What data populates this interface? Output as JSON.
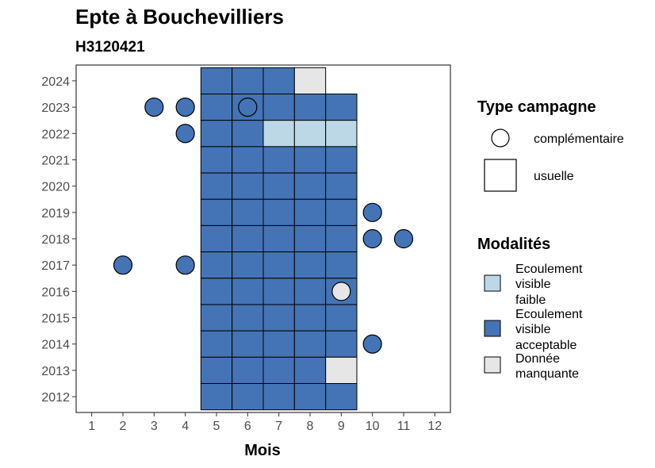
{
  "chart_data": {
    "type": "heatmap",
    "title": "Epte à Bouchevilliers",
    "subtitle": "H3120421",
    "xlabel": "Mois",
    "ylabel": "",
    "x_ticks": [
      1,
      2,
      3,
      4,
      5,
      6,
      7,
      8,
      9,
      10,
      11,
      12
    ],
    "y_ticks": [
      2012,
      2013,
      2014,
      2015,
      2016,
      2017,
      2018,
      2019,
      2020,
      2021,
      2022,
      2023,
      2024
    ],
    "xlim": [
      0.5,
      12.5
    ],
    "ylim": [
      2011.4,
      2024.6
    ],
    "grid": false,
    "colors": {
      "faible": "#bcd8e6",
      "acceptable": "#4474b5",
      "manquante": "#e6e6e6"
    },
    "legend_type": {
      "title": "Type campagne",
      "items": [
        {
          "shape": "circle",
          "label": "complémentaire"
        },
        {
          "shape": "square",
          "label": "usuelle"
        }
      ]
    },
    "legend_modalites": {
      "title": "Modalités",
      "items": [
        {
          "key": "faible",
          "lines": [
            "Ecoulement",
            "visible",
            "faible"
          ]
        },
        {
          "key": "acceptable",
          "lines": [
            "Ecoulement",
            "visible",
            "acceptable"
          ]
        },
        {
          "key": "manquante",
          "lines": [
            "Donnée",
            "manquante"
          ]
        }
      ]
    },
    "usuelle": [
      {
        "year": 2024,
        "months": [
          5,
          6,
          7
        ],
        "modalite": "acceptable"
      },
      {
        "year": 2024,
        "months": [
          8
        ],
        "modalite": "manquante"
      },
      {
        "year": 2023,
        "months": [
          5,
          6,
          7,
          8,
          9
        ],
        "modalite": "acceptable"
      },
      {
        "year": 2022,
        "months": [
          5,
          6
        ],
        "modalite": "acceptable"
      },
      {
        "year": 2022,
        "months": [
          7,
          8,
          9
        ],
        "modalite": "faible"
      },
      {
        "year": 2021,
        "months": [
          5,
          6,
          7,
          8,
          9
        ],
        "modalite": "acceptable"
      },
      {
        "year": 2020,
        "months": [
          5,
          6,
          7,
          8,
          9
        ],
        "modalite": "acceptable"
      },
      {
        "year": 2019,
        "months": [
          5,
          6,
          7,
          8,
          9
        ],
        "modalite": "acceptable"
      },
      {
        "year": 2018,
        "months": [
          5,
          6,
          7,
          8,
          9
        ],
        "modalite": "acceptable"
      },
      {
        "year": 2017,
        "months": [
          5,
          6,
          7,
          8,
          9
        ],
        "modalite": "acceptable"
      },
      {
        "year": 2016,
        "months": [
          5,
          6,
          7,
          8,
          9
        ],
        "modalite": "acceptable"
      },
      {
        "year": 2015,
        "months": [
          5,
          6,
          7,
          8,
          9
        ],
        "modalite": "acceptable"
      },
      {
        "year": 2014,
        "months": [
          5,
          6,
          7,
          8,
          9
        ],
        "modalite": "acceptable"
      },
      {
        "year": 2013,
        "months": [
          5,
          6,
          7,
          8
        ],
        "modalite": "acceptable"
      },
      {
        "year": 2013,
        "months": [
          9
        ],
        "modalite": "manquante"
      },
      {
        "year": 2012,
        "months": [
          5,
          6,
          7,
          8,
          9
        ],
        "modalite": "acceptable"
      }
    ],
    "complementaire": [
      {
        "year": 2023,
        "month": 3,
        "modalite": "acceptable"
      },
      {
        "year": 2023,
        "month": 4,
        "modalite": "acceptable"
      },
      {
        "year": 2023,
        "month": 6,
        "modalite": "acceptable"
      },
      {
        "year": 2022,
        "month": 4,
        "modalite": "acceptable"
      },
      {
        "year": 2019,
        "month": 10,
        "modalite": "acceptable"
      },
      {
        "year": 2018,
        "month": 10,
        "modalite": "acceptable"
      },
      {
        "year": 2018,
        "month": 11,
        "modalite": "acceptable"
      },
      {
        "year": 2017,
        "month": 2,
        "modalite": "acceptable"
      },
      {
        "year": 2017,
        "month": 4,
        "modalite": "acceptable"
      },
      {
        "year": 2016,
        "month": 9,
        "modalite": "manquante"
      },
      {
        "year": 2014,
        "month": 10,
        "modalite": "acceptable"
      }
    ]
  }
}
